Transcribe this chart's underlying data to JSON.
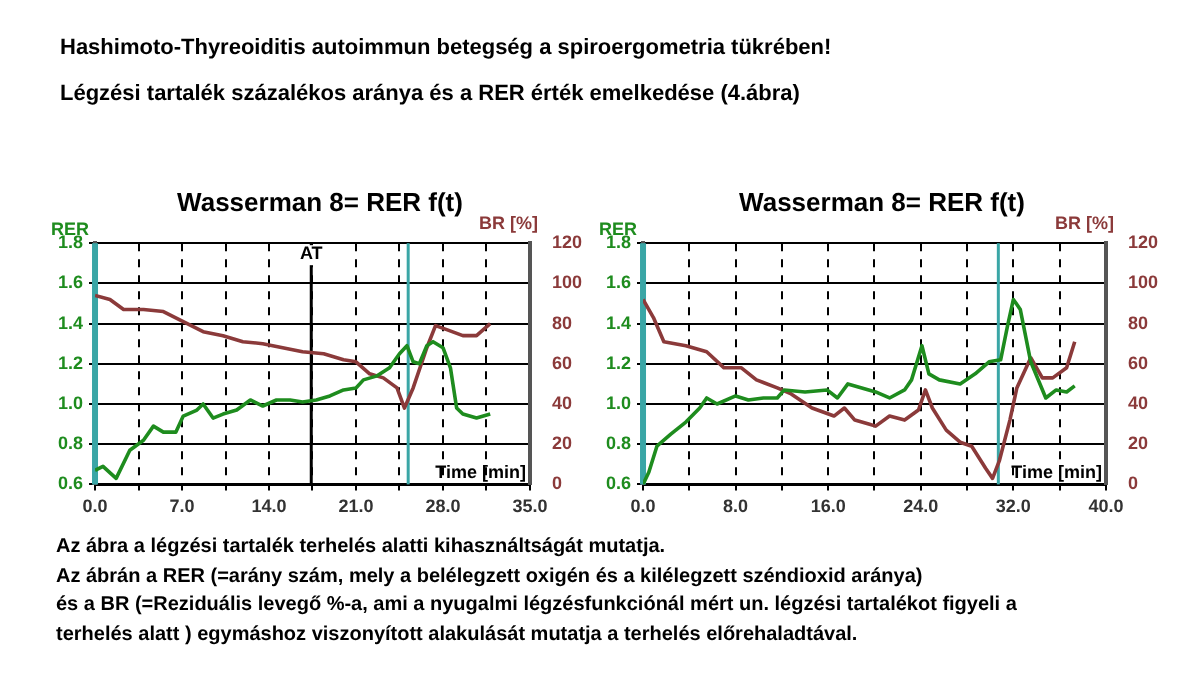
{
  "chart_data": [
    {
      "type": "line",
      "title": "Wasserman 8= RER f(t)",
      "ylabel": "RER",
      "y2label": "BR [%]",
      "xlabel": "Time [min]",
      "marker": "none",
      "grid": true,
      "legend": false,
      "annotations": [
        "Hashimoto-Thyreoiditis autoimmun betegség a spiroergometria tükrében!",
        "Légzési tartalék százalékos aránya és a RER érték emelkedése (4.ábra)",
        "Az ábra a légzési tartalék terhelés alatti kihasználtságát mutatja.",
        "Az ábrán a RER (=arány szám, mely a belélegzett oxigén és a kilélegzett széndioxid aránya)",
        "és a BR (=Reziduális levegő %-a, ami a nyugalmi légzésfunkciónál mért un. légzési tartalékot figyeli a",
        "terhelés alatt ) egymáshoz viszonyított alakulását mutatja a terhelés előrehaladtával."
      ],
      "xlim": [
        0,
        35
      ],
      "xticks": [
        {
          "value": 0,
          "label": "0.0"
        },
        {
          "value": 3.5,
          "label": null
        },
        {
          "value": 7,
          "label": "7.0"
        },
        {
          "value": 10.5,
          "label": null
        },
        {
          "value": 14,
          "label": "14.0"
        },
        {
          "value": 17.5,
          "label": null
        },
        {
          "value": 21,
          "label": "21.0"
        },
        {
          "value": 24.5,
          "label": null
        },
        {
          "value": 28,
          "label": "28.0"
        },
        {
          "value": 31.5,
          "label": null
        },
        {
          "value": 35,
          "label": "35.0"
        }
      ],
      "ylim": [
        0.6,
        1.8
      ],
      "yticks": [
        {
          "value": 0.6,
          "label": "0.6"
        },
        {
          "value": 0.8,
          "label": "0.8"
        },
        {
          "value": 1,
          "label": "1.0"
        },
        {
          "value": 1.2,
          "label": "1.2"
        },
        {
          "value": 1.4,
          "label": "1.4"
        },
        {
          "value": 1.6,
          "label": "1.6"
        },
        {
          "value": 1.8,
          "label": "1.8"
        }
      ],
      "y2lim": [
        0,
        120
      ],
      "y2ticks": [
        0,
        20,
        40,
        60,
        80,
        100,
        120
      ],
      "ref_lines": [
        {
          "axis": "x",
          "value": 0,
          "label": null,
          "color": "#3aa6a6"
        },
        {
          "axis": "x",
          "value": 17.4,
          "label": "AT",
          "color": "#000000"
        },
        {
          "axis": "x",
          "value": 25.2,
          "label": null,
          "color": "#3aa6a6"
        }
      ],
      "series": [
        {
          "color": "#1e8c1e",
          "axis": "y",
          "x": [
            0,
            0.64,
            1.7,
            2.8,
            3.9,
            4.7,
            5.5,
            6.5,
            7.1,
            8.2,
            8.7,
            9.5,
            10.3,
            11.4,
            12.5,
            13.5,
            14.6,
            15.7,
            16.7,
            17.8,
            18.9,
            20,
            21,
            21.6,
            22.7,
            23.7,
            24.5,
            25.1,
            25.6,
            26.1,
            26.7,
            27.2,
            28,
            28.6,
            29.1,
            29.6,
            30.7,
            31.8
          ],
          "values": [
            0.67,
            0.69,
            0.63,
            0.77,
            0.82,
            0.89,
            0.86,
            0.86,
            0.94,
            0.97,
            1.0,
            0.93,
            0.95,
            0.97,
            1.02,
            0.99,
            1.02,
            1.02,
            1.01,
            1.02,
            1.04,
            1.07,
            1.08,
            1.12,
            1.14,
            1.18,
            1.25,
            1.29,
            1.21,
            1.2,
            1.29,
            1.31,
            1.28,
            1.18,
            0.98,
            0.95,
            0.93,
            0.95
          ]
        },
        {
          "color": "#8b3a3a",
          "axis": "y2",
          "x": [
            0,
            1.2,
            2.3,
            3.9,
            5.5,
            7.1,
            8.7,
            10.3,
            11.9,
            13.5,
            15.1,
            16.7,
            18.4,
            20,
            21,
            22.1,
            23.2,
            24.3,
            24.9,
            25.6,
            26.7,
            27.4,
            28.3,
            29.6,
            30.7,
            31.8
          ],
          "values": [
            94,
            92,
            87,
            87,
            86,
            81,
            76,
            74,
            71,
            70,
            68,
            66,
            65,
            62,
            61,
            55,
            53,
            48,
            38,
            48,
            68,
            79,
            77,
            74,
            74,
            80
          ]
        }
      ]
    },
    {
      "type": "line",
      "title": "Wasserman 8= RER f(t)",
      "ylabel": "RER",
      "y2label": "BR [%]",
      "xlabel": "Time [min]",
      "marker": "none",
      "grid": true,
      "legend": false,
      "xlim": [
        0,
        40
      ],
      "xticks": [
        {
          "value": 0,
          "label": "0.0"
        },
        {
          "value": 4,
          "label": null
        },
        {
          "value": 8,
          "label": "8.0"
        },
        {
          "value": 12,
          "label": null
        },
        {
          "value": 16,
          "label": "16.0"
        },
        {
          "value": 20,
          "label": null
        },
        {
          "value": 24,
          "label": "24.0"
        },
        {
          "value": 28,
          "label": null
        },
        {
          "value": 32,
          "label": "32.0"
        },
        {
          "value": 36,
          "label": null
        },
        {
          "value": 40,
          "label": "40.0"
        }
      ],
      "ylim": [
        0.6,
        1.8
      ],
      "yticks": [
        {
          "value": 0.6,
          "label": "0.6"
        },
        {
          "value": 0.8,
          "label": "0.8"
        },
        {
          "value": 1,
          "label": "1.0"
        },
        {
          "value": 1.2,
          "label": "1.2"
        },
        {
          "value": 1.4,
          "label": "1.4"
        },
        {
          "value": 1.6,
          "label": "1.6"
        },
        {
          "value": 1.8,
          "label": "1.8"
        }
      ],
      "y2lim": [
        0,
        120
      ],
      "y2ticks": [
        0,
        20,
        40,
        60,
        80,
        100,
        120
      ],
      "ref_lines": [
        {
          "axis": "x",
          "value": 0,
          "label": null,
          "color": "#3aa6a6"
        },
        {
          "axis": "x",
          "value": 30.7,
          "label": null,
          "color": "#3aa6a6"
        }
      ],
      "series": [
        {
          "color": "#1e8c1e",
          "axis": "y",
          "x": [
            0,
            0.5,
            1.2,
            2.4,
            3.7,
            4.9,
            5.5,
            6.4,
            8,
            9.1,
            10.4,
            11.6,
            12.2,
            14,
            15.9,
            16.8,
            17.7,
            18.9,
            20.1,
            21.3,
            22.6,
            23.2,
            24.1,
            24.7,
            25.6,
            27.4,
            28.7,
            29.9,
            30.9,
            31.5,
            32,
            32.6,
            33.5,
            34.8,
            35.7,
            36.6,
            37.3
          ],
          "values": [
            0.6,
            0.66,
            0.79,
            0.85,
            0.91,
            0.98,
            1.03,
            1.0,
            1.04,
            1.02,
            1.03,
            1.03,
            1.07,
            1.06,
            1.07,
            1.03,
            1.1,
            1.08,
            1.06,
            1.03,
            1.07,
            1.12,
            1.29,
            1.15,
            1.12,
            1.1,
            1.15,
            1.21,
            1.22,
            1.39,
            1.52,
            1.47,
            1.21,
            1.03,
            1.07,
            1.06,
            1.09
          ]
        },
        {
          "color": "#8b3a3a",
          "axis": "y2",
          "x": [
            0,
            0.9,
            1.8,
            3.7,
            5.5,
            7,
            8.5,
            9.8,
            11.6,
            12.8,
            14.6,
            16.5,
            17.4,
            18.3,
            19.5,
            20.1,
            21.3,
            22.6,
            23.8,
            24.4,
            25,
            26.2,
            27.4,
            28.4,
            29.6,
            30.2,
            30.8,
            31.7,
            32.3,
            33.5,
            34.5,
            35.4,
            36.6,
            37.3
          ],
          "values": [
            92,
            83,
            71,
            69,
            66,
            58,
            58,
            52,
            48,
            45,
            38,
            34,
            38,
            32,
            30,
            29,
            34,
            32,
            37,
            47,
            38,
            27,
            21,
            19,
            8,
            3,
            12,
            32,
            48,
            63,
            53,
            53,
            58,
            71
          ]
        }
      ]
    }
  ]
}
